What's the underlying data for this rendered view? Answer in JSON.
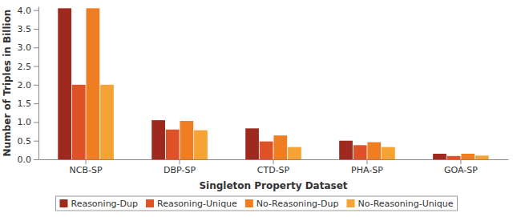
{
  "chart_data": {
    "type": "bar",
    "x_label": "Singleton Property Dataset",
    "y_label": "Number of Triples in Billion",
    "categories": [
      "NCB-SP",
      "DBP-SP",
      "CTD-SP",
      "PHA-SP",
      "GOA-SP"
    ],
    "series": [
      {
        "name": "Reasoning-Dup",
        "color": "#9e2a1f",
        "values": [
          4.05,
          1.05,
          0.83,
          0.5,
          0.15
        ]
      },
      {
        "name": "Reasoning-Unique",
        "color": "#df5228",
        "values": [
          2.0,
          0.8,
          0.48,
          0.38,
          0.09
        ]
      },
      {
        "name": "No-Reasoning-Dup",
        "color": "#ef7d22",
        "values": [
          4.05,
          1.03,
          0.64,
          0.46,
          0.15
        ]
      },
      {
        "name": "No-Reasoning-Unique",
        "color": "#f6a234",
        "values": [
          2.0,
          0.78,
          0.33,
          0.33,
          0.1
        ]
      }
    ],
    "ylim": [
      0,
      4.1
    ],
    "yticks": [
      {
        "value": 0,
        "label": "0.0"
      },
      {
        "value": 0.5,
        "label": "0.5"
      },
      {
        "value": 1,
        "label": "1.0"
      },
      {
        "value": 1.5,
        "label": "1.5"
      },
      {
        "value": 2,
        "label": "2.0"
      },
      {
        "value": 2.5,
        "label": "2.5"
      },
      {
        "value": 3,
        "label": "3.0"
      },
      {
        "value": 3.5,
        "label": "3.5"
      },
      {
        "value": 4,
        "label": "4.0"
      }
    ],
    "grid": false,
    "legend": "bottom"
  }
}
